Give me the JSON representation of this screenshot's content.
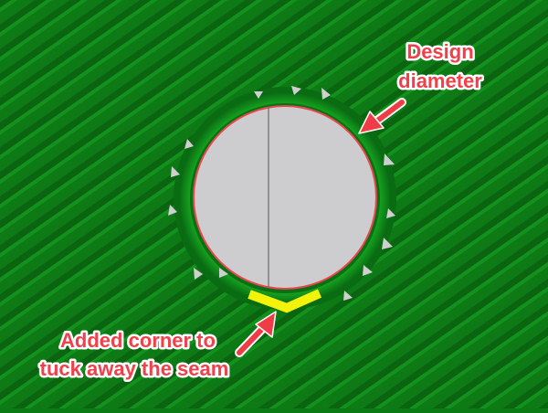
{
  "annotations": {
    "design_diameter": {
      "lines": [
        "Design",
        "diameter"
      ]
    },
    "seam_corner": {
      "lines": [
        "Added corner to",
        "tuck away the seam"
      ]
    }
  },
  "colors": {
    "background_stripe_dark": "#0b6e13",
    "background_stripe_light": "#12911c",
    "ring_dark": "#066a10",
    "ring_light": "#139a1d",
    "hole_fill": "#cdcdcf",
    "design_circle": "#e8474f",
    "seam_corner": "#f3f20a",
    "annotation_text": "#f0414b",
    "arrow": "#f03c46",
    "seam_line": "#6b6b6b",
    "triangles": "#cfcfcf"
  },
  "icons": {
    "arrow_to_circle": "arrow-icon",
    "arrow_to_corner": "arrow-icon",
    "triangle_markers": "triangle-icon"
  }
}
